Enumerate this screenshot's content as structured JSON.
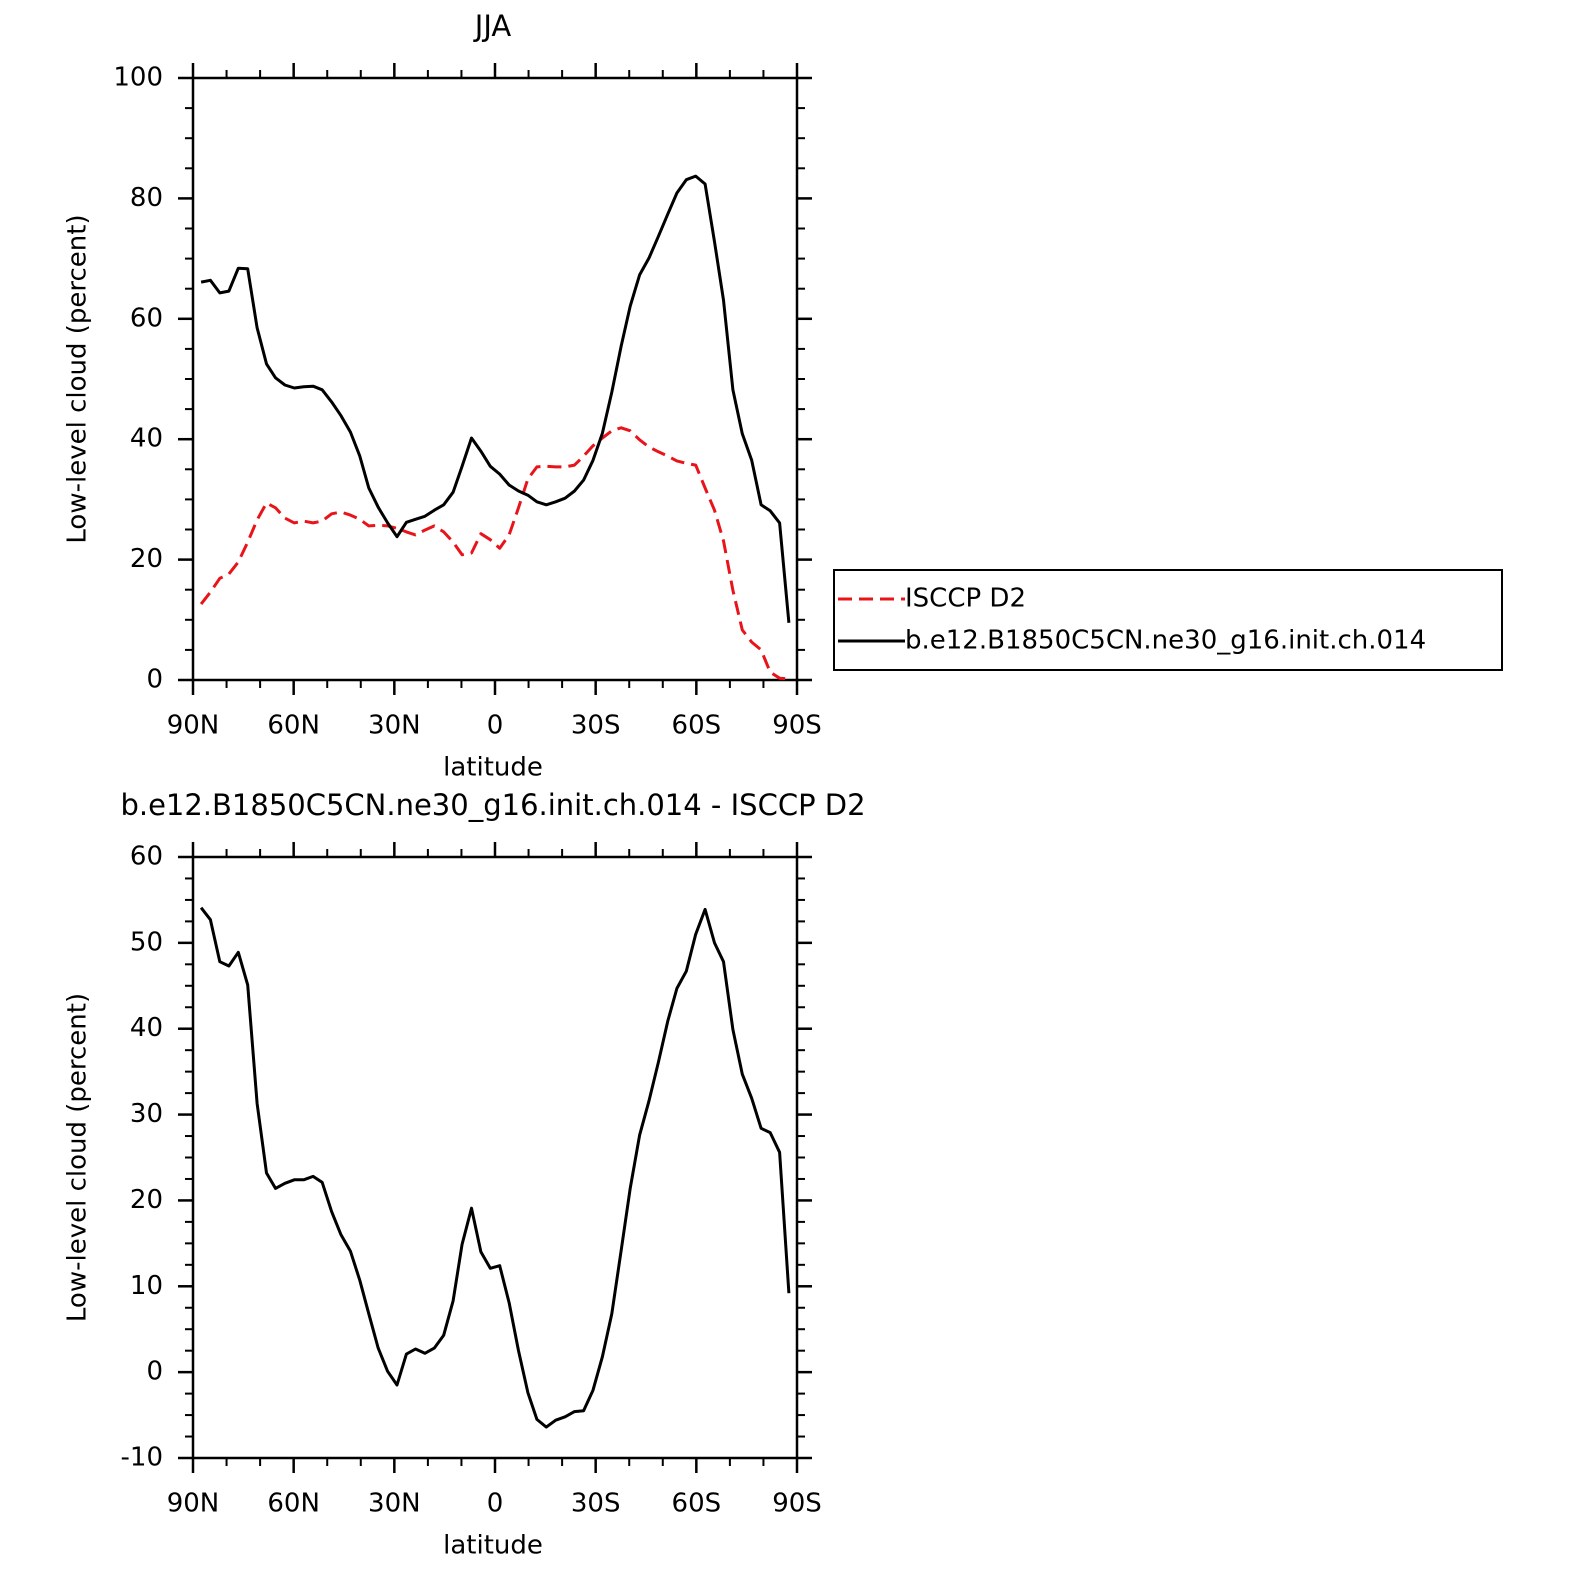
{
  "chart_data": [
    {
      "type": "line",
      "title": "JJA",
      "xlabel": "latitude",
      "ylabel": "Low-level cloud (percent)",
      "x": [
        87.6,
        84.8,
        82.0,
        79.3,
        76.5,
        73.7,
        70.9,
        68.1,
        65.4,
        62.6,
        59.8,
        57.0,
        54.2,
        51.5,
        48.7,
        45.9,
        43.1,
        40.3,
        37.6,
        34.8,
        32.0,
        29.2,
        26.4,
        23.7,
        20.9,
        18.1,
        15.3,
        12.5,
        9.8,
        7.0,
        4.2,
        1.4,
        -1.4,
        -4.2,
        -7.0,
        -9.8,
        -12.5,
        -15.3,
        -18.1,
        -20.9,
        -23.7,
        -26.4,
        -29.2,
        -32.0,
        -34.8,
        -37.6,
        -40.3,
        -43.1,
        -45.9,
        -48.7,
        -51.5,
        -54.2,
        -57.0,
        -59.8,
        -62.6,
        -65.4,
        -68.1,
        -70.9,
        -73.7,
        -76.5,
        -79.3,
        -82.0,
        -84.8,
        -87.6
      ],
      "series": [
        {
          "name": "ISCCP D2",
          "color": "#e8141a",
          "dashed": true,
          "values": [
            12.6,
            14.6,
            16.9,
            17.6,
            19.6,
            22.9,
            26.6,
            29.4,
            28.6,
            26.9,
            26.1,
            26.4,
            26.1,
            26.4,
            27.6,
            27.9,
            27.4,
            26.7,
            25.6,
            25.7,
            25.6,
            25.2,
            24.6,
            24.1,
            24.9,
            25.6,
            24.6,
            22.9,
            20.8,
            21.1,
            24.3,
            23.3,
            21.9,
            24.1,
            28.6,
            33.4,
            35.4,
            35.5,
            35.4,
            35.4,
            35.7,
            37.2,
            38.9,
            40.2,
            41.4,
            41.9,
            41.4,
            39.9,
            38.7,
            37.9,
            37.2,
            36.4,
            36.0,
            35.7,
            31.9,
            28.2,
            23.1,
            14.9,
            8.3,
            6.3,
            5.0,
            1.3,
            0.3,
            0.2
          ]
        },
        {
          "name": "b.e12.B1850C5CN.ne30_g16.init.ch.014",
          "color": "#000000",
          "dashed": false,
          "values": [
            66.1,
            66.4,
            64.3,
            64.6,
            68.4,
            68.3,
            58.5,
            52.5,
            50.2,
            49.0,
            48.5,
            48.7,
            48.8,
            48.2,
            46.2,
            43.9,
            41.2,
            37.2,
            31.9,
            28.7,
            26.1,
            23.8,
            26.2,
            26.7,
            27.2,
            28.2,
            29.1,
            31.2,
            35.5,
            40.2,
            38.0,
            35.5,
            34.2,
            32.4,
            31.4,
            30.7,
            29.6,
            29.1,
            29.6,
            30.2,
            31.4,
            33.2,
            36.5,
            41.0,
            47.8,
            55.5,
            62.1,
            67.3,
            70.1,
            73.7,
            77.4,
            80.9,
            83.1,
            83.7,
            82.4,
            72.8,
            63.1,
            48.2,
            40.9,
            36.5,
            29.1,
            28.1,
            26.1,
            9.5
          ]
        }
      ],
      "xlim": [
        90,
        -90
      ],
      "xticks": [
        {
          "value": 90,
          "label": "90N"
        },
        {
          "value": 60,
          "label": "60N"
        },
        {
          "value": 30,
          "label": "30N"
        },
        0,
        {
          "value": -30,
          "label": "30S"
        },
        {
          "value": -60,
          "label": "60S"
        },
        {
          "value": -90,
          "label": "90S"
        }
      ],
      "ylim": [
        0,
        100
      ],
      "yticks": [
        0,
        20,
        40,
        60,
        80,
        100
      ],
      "legend": "right"
    },
    {
      "type": "line",
      "title": "b.e12.B1850C5CN.ne30_g16.init.ch.014 - ISCCP D2",
      "xlabel": "latitude",
      "ylabel": "Low-level cloud (percent)",
      "x": [
        87.6,
        84.8,
        82.0,
        79.3,
        76.5,
        73.7,
        70.9,
        68.1,
        65.4,
        62.6,
        59.8,
        57.0,
        54.2,
        51.5,
        48.7,
        45.9,
        43.1,
        40.3,
        37.6,
        34.8,
        32.0,
        29.2,
        26.4,
        23.7,
        20.9,
        18.1,
        15.3,
        12.5,
        9.8,
        7.0,
        4.2,
        1.4,
        -1.4,
        -4.2,
        -7.0,
        -9.8,
        -12.5,
        -15.3,
        -18.1,
        -20.9,
        -23.7,
        -26.4,
        -29.2,
        -32.0,
        -34.8,
        -37.6,
        -40.3,
        -43.1,
        -45.9,
        -48.7,
        -51.5,
        -54.2,
        -57.0,
        -59.8,
        -62.6,
        -65.4,
        -68.1,
        -70.9,
        -73.7,
        -76.5,
        -79.3,
        -82.0,
        -84.8,
        -87.6
      ],
      "series": [
        {
          "color": "#000000",
          "dashed": false,
          "values": [
            54.1,
            52.7,
            47.8,
            47.3,
            48.9,
            45.1,
            31.3,
            23.2,
            21.4,
            22.0,
            22.4,
            22.4,
            22.8,
            22.1,
            18.7,
            16.0,
            14.1,
            10.7,
            6.8,
            2.8,
            0.1,
            -1.5,
            2.1,
            2.7,
            2.2,
            2.8,
            4.3,
            8.3,
            14.9,
            19.1,
            14.0,
            12.1,
            12.4,
            8.1,
            2.5,
            -2.4,
            -5.5,
            -6.4,
            -5.6,
            -5.2,
            -4.6,
            -4.5,
            -2.1,
            1.8,
            6.8,
            14.2,
            21.4,
            27.6,
            31.6,
            36.1,
            40.9,
            44.7,
            46.7,
            51.0,
            53.9,
            50.0,
            47.8,
            39.9,
            34.7,
            31.9,
            28.4,
            27.9,
            25.6,
            9.2
          ]
        }
      ],
      "xlim": [
        90,
        -90
      ],
      "xticks": [
        {
          "value": 90,
          "label": "90N"
        },
        {
          "value": 60,
          "label": "60N"
        },
        {
          "value": 30,
          "label": "30N"
        },
        0,
        {
          "value": -30,
          "label": "30S"
        },
        {
          "value": -60,
          "label": "60S"
        },
        {
          "value": -90,
          "label": "90S"
        }
      ],
      "ylim": [
        -10,
        60
      ],
      "yticks": [
        -10,
        0,
        10,
        20,
        30,
        40,
        50,
        60
      ]
    }
  ]
}
